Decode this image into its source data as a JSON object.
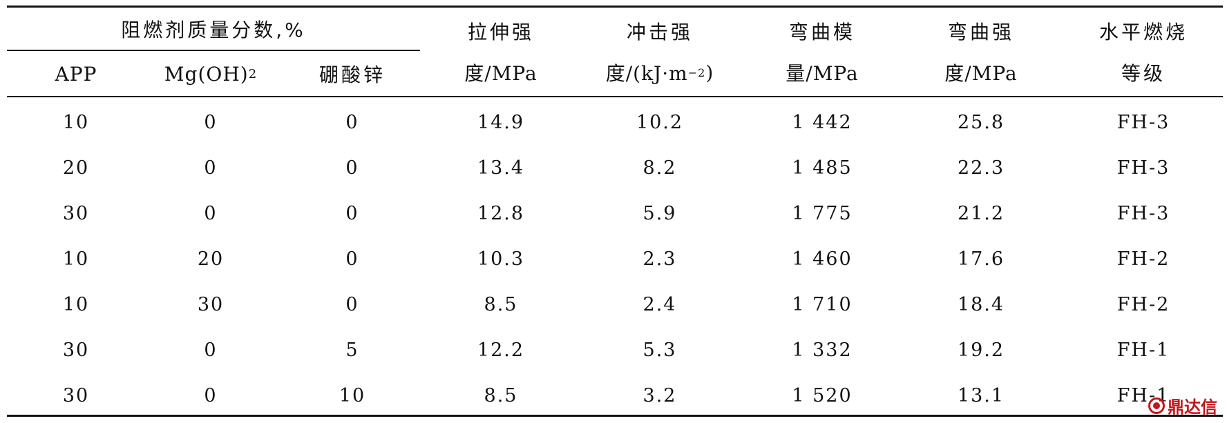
{
  "table": {
    "group_header": "阻燃剂质量分数,%",
    "sub_headers": {
      "app": "APP",
      "mgoh_main": "Mg(OH)",
      "mgoh_sub": "2",
      "zinc_borate": "硼酸锌"
    },
    "headers": {
      "tensile_line1": "拉伸强",
      "tensile_line2": "度/MPa",
      "impact_line1": "冲击强",
      "impact_line2_main": "度/(kJ·m",
      "impact_line2_sup": "−2",
      "impact_line2_end": ")",
      "flex_mod_line1": "弯曲模",
      "flex_mod_line2": "量/MPa",
      "flex_str_line1": "弯曲强",
      "flex_str_line2": "度/MPa",
      "burn_line1": "水平燃烧",
      "burn_line2": "等级"
    },
    "rows": [
      {
        "app": "10",
        "mgoh": "0",
        "zinc": "0",
        "tensile": "14.9",
        "impact": "10.2",
        "flex_mod": "1 442",
        "flex_str": "25.8",
        "burn": "FH-3"
      },
      {
        "app": "20",
        "mgoh": "0",
        "zinc": "0",
        "tensile": "13.4",
        "impact": "8.2",
        "flex_mod": "1 485",
        "flex_str": "22.3",
        "burn": "FH-3"
      },
      {
        "app": "30",
        "mgoh": "0",
        "zinc": "0",
        "tensile": "12.8",
        "impact": "5.9",
        "flex_mod": "1 775",
        "flex_str": "21.2",
        "burn": "FH-3"
      },
      {
        "app": "10",
        "mgoh": "20",
        "zinc": "0",
        "tensile": "10.3",
        "impact": "2.3",
        "flex_mod": "1 460",
        "flex_str": "17.6",
        "burn": "FH-2"
      },
      {
        "app": "10",
        "mgoh": "30",
        "zinc": "0",
        "tensile": "8.5",
        "impact": "2.4",
        "flex_mod": "1 710",
        "flex_str": "18.4",
        "burn": "FH-2"
      },
      {
        "app": "30",
        "mgoh": "0",
        "zinc": "5",
        "tensile": "12.2",
        "impact": "5.3",
        "flex_mod": "1 332",
        "flex_str": "19.2",
        "burn": "FH-1"
      },
      {
        "app": "30",
        "mgoh": "0",
        "zinc": "10",
        "tensile": "8.5",
        "impact": "3.2",
        "flex_mod": "1 520",
        "flex_str": "13.1",
        "burn": "FH-1"
      }
    ]
  },
  "watermark": {
    "text": "鼎达信",
    "color": "#c4161c",
    "icon": "dingdaxin-logo-icon"
  }
}
